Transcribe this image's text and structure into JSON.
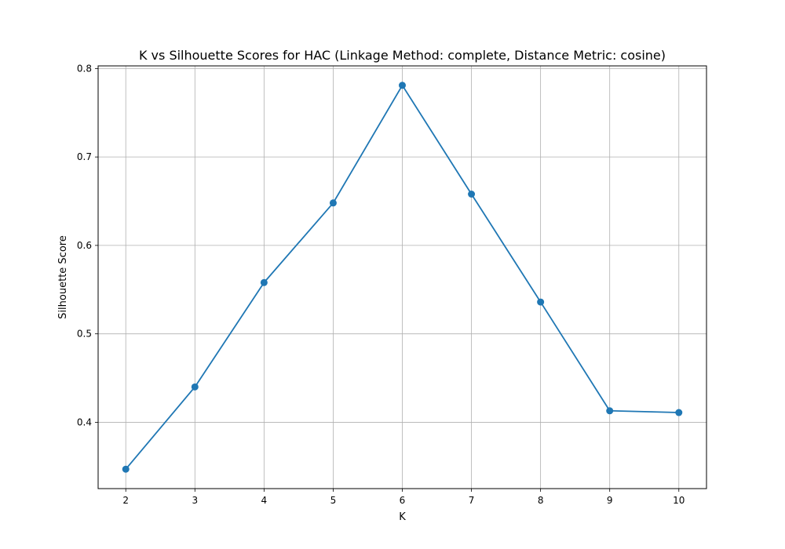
{
  "chart_data": {
    "type": "line",
    "title": "K vs Silhouette Scores for HAC (Linkage Method: complete, Distance Metric: cosine)",
    "xlabel": "K",
    "ylabel": "Silhouette Score",
    "x": [
      2,
      3,
      4,
      5,
      6,
      7,
      8,
      9,
      10
    ],
    "series": [
      {
        "values": [
          0.347,
          0.44,
          0.558,
          0.648,
          0.781,
          0.658,
          0.536,
          0.413,
          0.411
        ],
        "color": "#1f77b4",
        "marker": "circle"
      }
    ],
    "xticks": [
      "2",
      "3",
      "4",
      "5",
      "6",
      "7",
      "8",
      "9",
      "10"
    ],
    "yticks": [
      "0.4",
      "0.5",
      "0.6",
      "0.7",
      "0.8"
    ],
    "xlim": [
      1.6,
      10.4
    ],
    "ylim": [
      0.325,
      0.803
    ],
    "grid": true
  }
}
